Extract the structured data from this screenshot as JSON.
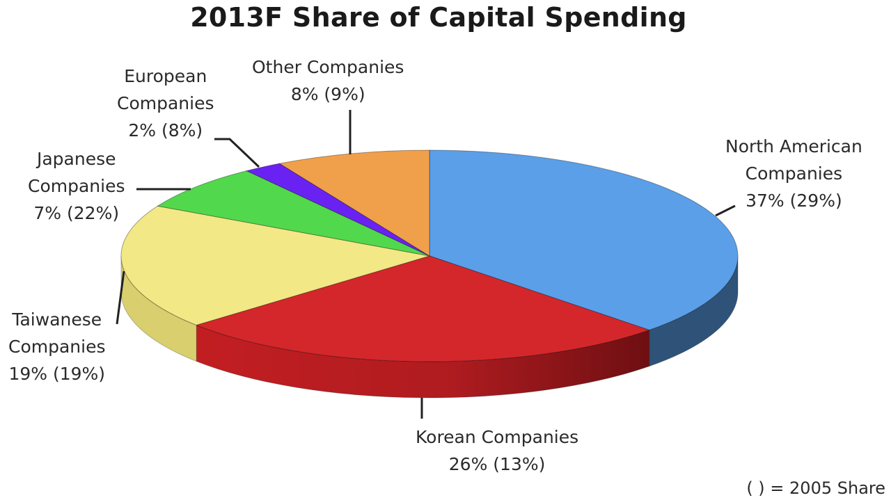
{
  "chart_data": {
    "type": "pie",
    "title": "2013F Share of Capital Spending",
    "note": "( ) = 2005 Share",
    "slices": [
      {
        "name": "North American Companies",
        "value": 37,
        "value_2005": 29,
        "label_lines": [
          "North American",
          "Companies",
          "37% (29%)"
        ],
        "color": "#5b9fe8",
        "side_color": "#2f5378"
      },
      {
        "name": "Korean Companies",
        "value": 26,
        "value_2005": 13,
        "label_lines": [
          "Korean Companies",
          "26% (13%)"
        ],
        "color": "#d4272b",
        "side_color": "#8c1418"
      },
      {
        "name": "Taiwanese Companies",
        "value": 19,
        "value_2005": 19,
        "label_lines": [
          "Taiwanese",
          "Companies",
          "19% (19%)"
        ],
        "color": "#f2e885",
        "side_color": "#d9cf6e"
      },
      {
        "name": "Japanese Companies",
        "value": 7,
        "value_2005": 22,
        "label_lines": [
          "Japanese",
          "Companies",
          "7% (22%)"
        ],
        "color": "#52d84c",
        "side_color": "#2f8a2c"
      },
      {
        "name": "European Companies",
        "value": 2,
        "value_2005": 8,
        "label_lines": [
          "European",
          "Companies",
          "2% (8%)"
        ],
        "color": "#6a22f2",
        "side_color": "#3c1290"
      },
      {
        "name": "Other Companies",
        "value": 8,
        "value_2005": 9,
        "label_lines": [
          "Other Companies",
          "8% (9%)"
        ],
        "color": "#f0a04b",
        "side_color": "#a8692b"
      }
    ]
  }
}
